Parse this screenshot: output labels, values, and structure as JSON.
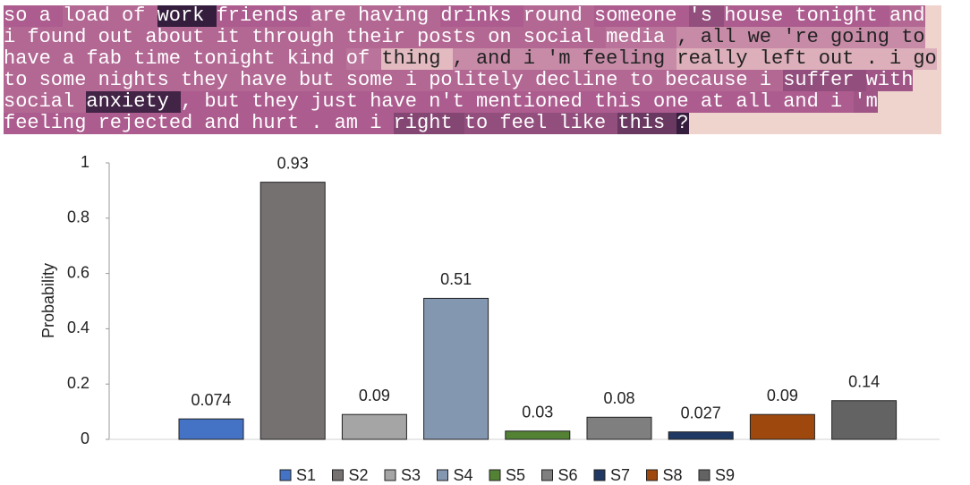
{
  "text_heatmap": {
    "lines": [
      [
        {
          "token": "so",
          "weight": 0.5
        },
        {
          "token": "a",
          "weight": 0.5
        },
        {
          "token": "load",
          "weight": 0.45
        },
        {
          "token": "of",
          "weight": 0.45
        },
        {
          "token": "work",
          "weight": 0.95
        },
        {
          "token": "friends",
          "weight": 0.5
        },
        {
          "token": "are",
          "weight": 0.45
        },
        {
          "token": "having",
          "weight": 0.45
        },
        {
          "token": "drinks",
          "weight": 0.5
        },
        {
          "token": "round",
          "weight": 0.45
        },
        {
          "token": "someone",
          "weight": 0.5
        },
        {
          "token": "'s",
          "weight": 0.6
        },
        {
          "token": "house",
          "weight": 0.5
        },
        {
          "token": "tonight",
          "weight": 0.5
        },
        {
          "token": "and",
          "weight": 0.45
        }
      ],
      [
        {
          "token": "i",
          "weight": 0.45
        },
        {
          "token": "found",
          "weight": 0.45
        },
        {
          "token": "out",
          "weight": 0.45
        },
        {
          "token": "about",
          "weight": 0.45
        },
        {
          "token": "it",
          "weight": 0.45
        },
        {
          "token": "through",
          "weight": 0.45
        },
        {
          "token": "their",
          "weight": 0.45
        },
        {
          "token": "posts",
          "weight": 0.45
        },
        {
          "token": "on",
          "weight": 0.45
        },
        {
          "token": "social",
          "weight": 0.45
        },
        {
          "token": "media",
          "weight": 0.4
        },
        {
          "token": ",",
          "weight": 0.3
        },
        {
          "token": "all",
          "weight": 0.3
        },
        {
          "token": "we",
          "weight": 0.3
        },
        {
          "token": "'re",
          "weight": 0.3
        },
        {
          "token": "going",
          "weight": 0.3
        },
        {
          "token": "to",
          "weight": 0.3
        }
      ],
      [
        {
          "token": "have",
          "weight": 0.45
        },
        {
          "token": "a",
          "weight": 0.45
        },
        {
          "token": "fab",
          "weight": 0.45
        },
        {
          "token": "time",
          "weight": 0.45
        },
        {
          "token": "tonight",
          "weight": 0.45
        },
        {
          "token": "kind",
          "weight": 0.45
        },
        {
          "token": "of",
          "weight": 0.4
        },
        {
          "token": "thing",
          "weight": 0.1
        },
        {
          "token": ",",
          "weight": 0.3
        },
        {
          "token": "and",
          "weight": 0.3
        },
        {
          "token": "i",
          "weight": 0.3
        },
        {
          "token": "'m",
          "weight": 0.3
        },
        {
          "token": "feeling",
          "weight": 0.3
        },
        {
          "token": "really",
          "weight": 0.15
        },
        {
          "token": "left",
          "weight": 0.15
        },
        {
          "token": "out",
          "weight": 0.15
        },
        {
          "token": ".",
          "weight": 0.15
        },
        {
          "token": "i",
          "weight": 0.15
        },
        {
          "token": "go",
          "weight": 0.15
        }
      ],
      [
        {
          "token": "to",
          "weight": 0.45
        },
        {
          "token": "some",
          "weight": 0.45
        },
        {
          "token": "nights",
          "weight": 0.45
        },
        {
          "token": "they",
          "weight": 0.45
        },
        {
          "token": "have",
          "weight": 0.45
        },
        {
          "token": "but",
          "weight": 0.45
        },
        {
          "token": "some",
          "weight": 0.45
        },
        {
          "token": "i",
          "weight": 0.45
        },
        {
          "token": "politely",
          "weight": 0.45
        },
        {
          "token": "decline",
          "weight": 0.45
        },
        {
          "token": "to",
          "weight": 0.45
        },
        {
          "token": "because",
          "weight": 0.45
        },
        {
          "token": "i",
          "weight": 0.45
        },
        {
          "token": "suffer",
          "weight": 0.6
        },
        {
          "token": "with",
          "weight": 0.55
        }
      ],
      [
        {
          "token": "social",
          "weight": 0.45
        },
        {
          "token": "anxiety",
          "weight": 0.9
        },
        {
          "token": ",",
          "weight": 0.5
        },
        {
          "token": "but",
          "weight": 0.5
        },
        {
          "token": "they",
          "weight": 0.5
        },
        {
          "token": "just",
          "weight": 0.5
        },
        {
          "token": "have",
          "weight": 0.5
        },
        {
          "token": "n't",
          "weight": 0.5
        },
        {
          "token": "mentioned",
          "weight": 0.5
        },
        {
          "token": "this",
          "weight": 0.5
        },
        {
          "token": "one",
          "weight": 0.5
        },
        {
          "token": "at",
          "weight": 0.5
        },
        {
          "token": "all",
          "weight": 0.5
        },
        {
          "token": "and",
          "weight": 0.5
        },
        {
          "token": "i",
          "weight": 0.5
        },
        {
          "token": "'m",
          "weight": 0.55
        }
      ],
      [
        {
          "token": "feeling",
          "weight": 0.5
        },
        {
          "token": "rejected",
          "weight": 0.5
        },
        {
          "token": "and",
          "weight": 0.5
        },
        {
          "token": "hurt",
          "weight": 0.5
        },
        {
          "token": ".",
          "weight": 0.5
        },
        {
          "token": "am",
          "weight": 0.5
        },
        {
          "token": "i",
          "weight": 0.5
        },
        {
          "token": "right",
          "weight": 0.65
        },
        {
          "token": "to",
          "weight": 0.6
        },
        {
          "token": "feel",
          "weight": 0.6
        },
        {
          "token": "like",
          "weight": 0.6
        },
        {
          "token": "this",
          "weight": 0.75
        },
        {
          "token": "?",
          "weight": 0.95
        }
      ]
    ]
  },
  "chart_data": {
    "type": "bar",
    "y_label": "Probability",
    "categories": [
      "S1",
      "S2",
      "S3",
      "S4",
      "S5",
      "S6",
      "S7",
      "S8",
      "S9"
    ],
    "values": [
      0.074,
      0.93,
      0.09,
      0.51,
      0.03,
      0.08,
      0.027,
      0.09,
      0.14
    ],
    "colors": [
      "#4472c4",
      "#767171",
      "#a5a5a5",
      "#8497b0",
      "#548235",
      "#7f7f7f",
      "#203864",
      "#9e480e",
      "#636363"
    ],
    "ylim": [
      0,
      1
    ],
    "yticks": [
      0,
      0.2,
      0.4,
      0.6,
      0.8,
      1
    ],
    "grid": false,
    "legend": "bottom"
  }
}
